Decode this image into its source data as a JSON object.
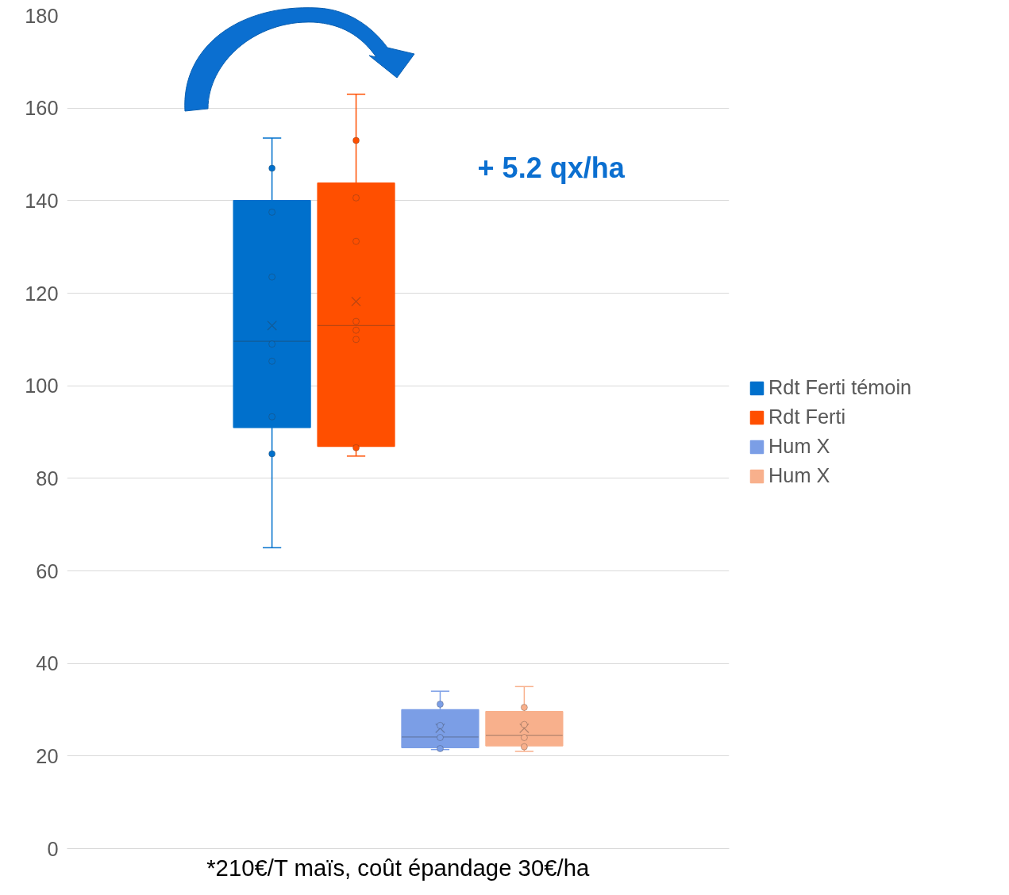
{
  "chart_data": {
    "type": "box",
    "categories": [
      null
    ],
    "ylim": [
      0,
      180
    ],
    "yticks": [
      0,
      20,
      40,
      60,
      80,
      100,
      120,
      140,
      160,
      180
    ],
    "grid": "y",
    "legend": "right",
    "tick_labels": "y",
    "marker": "circle",
    "annotations": [
      "+ 5.2 qx/ha",
      "*210€/T maïs, coût épandage 30€/ha"
    ],
    "series": [
      {
        "name": "Rdt Ferti témoin",
        "color": "#0070cc",
        "boxes": [
          {
            "low": 65,
            "q1": 91,
            "median": 109.6,
            "q3": 140,
            "high": 153.5,
            "mean": 113,
            "outliers": [
              147,
              137.5,
              123.5,
              109,
              105.3,
              93.3,
              85.3
            ]
          }
        ]
      },
      {
        "name": "Rdt Ferti",
        "color": "#ff4f00",
        "boxes": [
          {
            "low": 84.8,
            "q1": 86.9,
            "median": 113,
            "q3": 143.8,
            "high": 163,
            "mean": 118.2,
            "outliers": [
              153,
              140.6,
              131.2,
              113.9,
              112,
              110,
              86.6
            ]
          }
        ]
      },
      {
        "name": "Hum X",
        "color": "#7b9ee6",
        "boxes": [
          {
            "low": 21.4,
            "q1": 21.8,
            "median": 24.1,
            "q3": 30,
            "high": 34,
            "mean": 26,
            "outliers": [
              31.2,
              26.6,
              24,
              21.6
            ]
          }
        ]
      },
      {
        "name": "Hum X",
        "color": "#f8b08c",
        "boxes": [
          {
            "low": 21,
            "q1": 22.2,
            "median": 24.5,
            "q3": 29.6,
            "high": 35,
            "mean": 26,
            "outliers": [
              30.5,
              26.8,
              24,
              22
            ]
          }
        ]
      }
    ]
  }
}
